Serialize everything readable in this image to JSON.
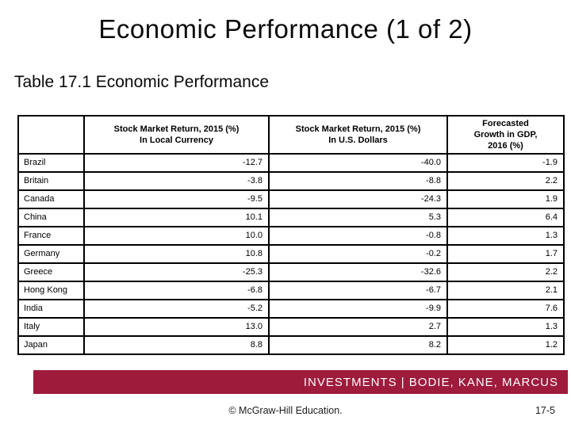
{
  "slide": {
    "title": "Economic Performance (1 of 2)",
    "subtitle": "Table 17.1 Economic Performance"
  },
  "table": {
    "columns": [
      "",
      "Stock Market Return, 2015 (%)\nIn Local Currency",
      "Stock Market Return, 2015 (%)\nIn U.S. Dollars",
      "Forecasted\nGrowth in GDP,\n2016 (%)"
    ],
    "rows": [
      {
        "country": "Brazil",
        "local_currency": "-12.7",
        "us_dollars": "-40.0",
        "gdp_growth": "-1.9"
      },
      {
        "country": "Britain",
        "local_currency": "-3.8",
        "us_dollars": "-8.8",
        "gdp_growth": "2.2"
      },
      {
        "country": "Canada",
        "local_currency": "-9.5",
        "us_dollars": "-24.3",
        "gdp_growth": "1.9"
      },
      {
        "country": "China",
        "local_currency": "10.1",
        "us_dollars": "5.3",
        "gdp_growth": "6.4"
      },
      {
        "country": "France",
        "local_currency": "10.0",
        "us_dollars": "-0.8",
        "gdp_growth": "1.3"
      },
      {
        "country": "Germany",
        "local_currency": "10.8",
        "us_dollars": "-0.2",
        "gdp_growth": "1.7"
      },
      {
        "country": "Greece",
        "local_currency": "-25.3",
        "us_dollars": "-32.6",
        "gdp_growth": "2.2"
      },
      {
        "country": "Hong Kong",
        "local_currency": "-6.8",
        "us_dollars": "-6.7",
        "gdp_growth": "2.1"
      },
      {
        "country": "India",
        "local_currency": "-5.2",
        "us_dollars": "-9.9",
        "gdp_growth": "7.6"
      },
      {
        "country": "Italy",
        "local_currency": "13.0",
        "us_dollars": "2.7",
        "gdp_growth": "1.3"
      },
      {
        "country": "Japan",
        "local_currency": "8.8",
        "us_dollars": "8.2",
        "gdp_growth": "1.2"
      }
    ]
  },
  "footer": {
    "banner_text": "INVESTMENTS | BODIE, KANE, MARCUS",
    "banner_color": "#9E1B3C",
    "copyright": "© McGraw-Hill Education.",
    "page_number": "17-5"
  }
}
